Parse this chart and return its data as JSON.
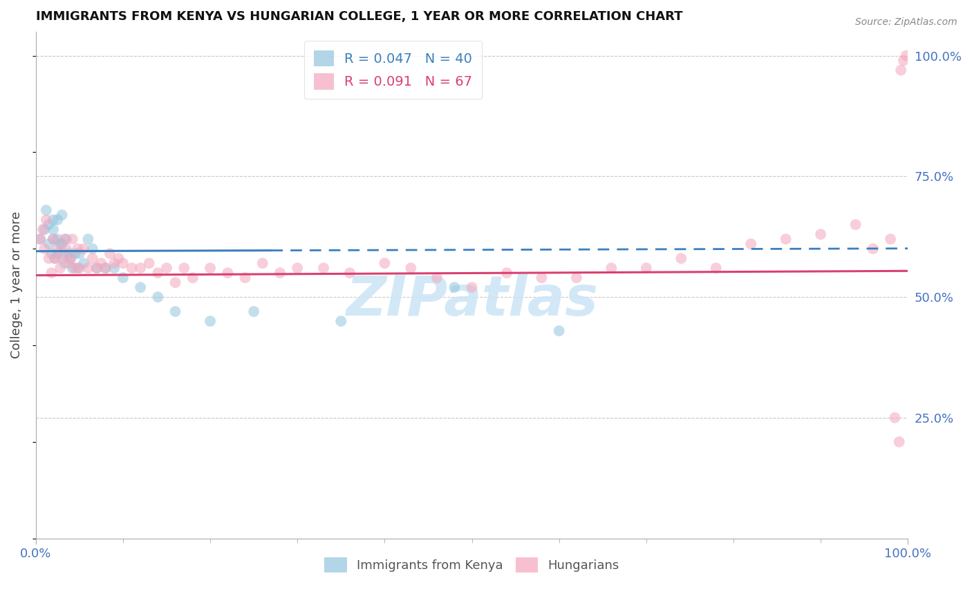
{
  "title": "IMMIGRANTS FROM KENYA VS HUNGARIAN COLLEGE, 1 YEAR OR MORE CORRELATION CHART",
  "source": "Source: ZipAtlas.com",
  "ylabel": "College, 1 year or more",
  "xlim": [
    0.0,
    1.0
  ],
  "ylim": [
    0.0,
    1.05
  ],
  "y_ticks": [
    0.25,
    0.5,
    0.75,
    1.0
  ],
  "y_tick_labels": [
    "25.0%",
    "50.0%",
    "75.0%",
    "100.0%"
  ],
  "legend_r1": "R = 0.047",
  "legend_n1": "N = 40",
  "legend_r2": "R = 0.091",
  "legend_n2": "N = 67",
  "color_kenya": "#92c5de",
  "color_hungarian": "#f4a6bc",
  "color_trend_kenya": "#3a7fbf",
  "color_trend_hungarian": "#d94070",
  "kenya_x": [
    0.005,
    0.01,
    0.012,
    0.015,
    0.015,
    0.018,
    0.02,
    0.02,
    0.02,
    0.022,
    0.025,
    0.025,
    0.025,
    0.028,
    0.03,
    0.03,
    0.032,
    0.033,
    0.035,
    0.038,
    0.04,
    0.042,
    0.045,
    0.048,
    0.05,
    0.055,
    0.06,
    0.065,
    0.07,
    0.08,
    0.09,
    0.1,
    0.12,
    0.14,
    0.16,
    0.2,
    0.25,
    0.35,
    0.48,
    0.6
  ],
  "kenya_y": [
    0.62,
    0.64,
    0.68,
    0.65,
    0.61,
    0.59,
    0.66,
    0.64,
    0.62,
    0.58,
    0.66,
    0.62,
    0.59,
    0.61,
    0.67,
    0.61,
    0.59,
    0.57,
    0.62,
    0.59,
    0.58,
    0.56,
    0.59,
    0.56,
    0.59,
    0.57,
    0.62,
    0.6,
    0.56,
    0.56,
    0.56,
    0.54,
    0.52,
    0.5,
    0.47,
    0.45,
    0.47,
    0.45,
    0.52,
    0.43
  ],
  "hungarian_x": [
    0.005,
    0.008,
    0.01,
    0.012,
    0.015,
    0.018,
    0.02,
    0.022,
    0.025,
    0.028,
    0.03,
    0.033,
    0.035,
    0.038,
    0.04,
    0.042,
    0.045,
    0.048,
    0.05,
    0.055,
    0.06,
    0.065,
    0.07,
    0.075,
    0.08,
    0.085,
    0.09,
    0.095,
    0.1,
    0.11,
    0.12,
    0.13,
    0.14,
    0.15,
    0.16,
    0.17,
    0.18,
    0.2,
    0.22,
    0.24,
    0.26,
    0.28,
    0.3,
    0.33,
    0.36,
    0.4,
    0.43,
    0.46,
    0.5,
    0.54,
    0.58,
    0.62,
    0.66,
    0.7,
    0.74,
    0.78,
    0.82,
    0.86,
    0.9,
    0.94,
    0.96,
    0.98,
    0.985,
    0.99,
    0.992,
    0.995,
    0.998
  ],
  "hungarian_y": [
    0.62,
    0.64,
    0.6,
    0.66,
    0.58,
    0.55,
    0.62,
    0.58,
    0.6,
    0.56,
    0.58,
    0.62,
    0.6,
    0.57,
    0.58,
    0.62,
    0.56,
    0.6,
    0.56,
    0.6,
    0.56,
    0.58,
    0.56,
    0.57,
    0.56,
    0.59,
    0.57,
    0.58,
    0.57,
    0.56,
    0.56,
    0.57,
    0.55,
    0.56,
    0.53,
    0.56,
    0.54,
    0.56,
    0.55,
    0.54,
    0.57,
    0.55,
    0.56,
    0.56,
    0.55,
    0.57,
    0.56,
    0.54,
    0.52,
    0.55,
    0.54,
    0.54,
    0.56,
    0.56,
    0.58,
    0.56,
    0.61,
    0.62,
    0.63,
    0.65,
    0.6,
    0.62,
    0.25,
    0.2,
    0.97,
    0.99,
    1.0
  ],
  "watermark_text": "ZIPatlas",
  "watermark_color": "#cce4f5",
  "tick_color": "#4472c4",
  "grid_color": "#c8c8c8",
  "axis_color": "#aaaaaa"
}
